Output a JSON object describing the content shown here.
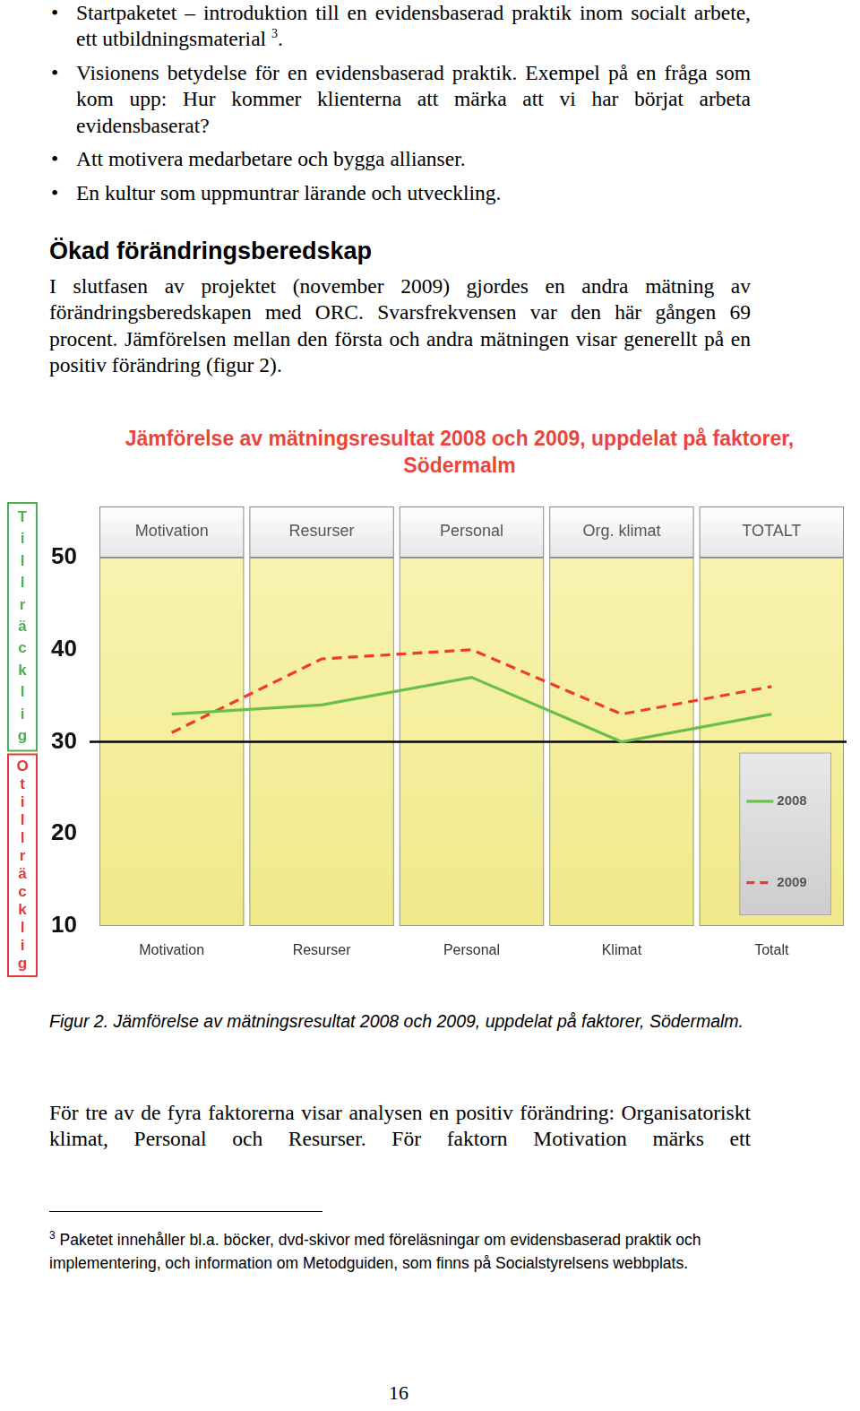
{
  "bullets": [
    {
      "text": "Startpaketet – introduktion till en evidensbaserad praktik inom socialt arbete, ett utbildningsmaterial",
      "footnote_ref": "3",
      "after": "."
    },
    {
      "text": "Visionens betydelse för en evidensbaserad praktik. Exempel på en fråga som kom upp: Hur kommer klienterna att märka att vi har börjat arbeta evidensbaserat?"
    },
    {
      "text": "Att motivera medarbetare och bygga allianser."
    },
    {
      "text": "En kultur som uppmuntrar lärande och utveckling."
    }
  ],
  "section": {
    "heading": "Ökad förändringsberedskap",
    "paragraph": "I slutfasen av projektet (november 2009) gjordes en andra mätning av förändringsberedskapen med ORC. Svarsfrekvensen var den här gången 69 procent. Jämförelsen mellan den första och andra mätningen visar generellt på en positiv förändring (figur 2)."
  },
  "chart_data": {
    "type": "line",
    "title": "Jämförelse av mätningsresultat 2008 och 2009, uppdelat på faktorer, Södermalm",
    "categories": [
      "Motivation",
      "Resurser",
      "Personal",
      "Klimat",
      "Totalt"
    ],
    "column_headers": [
      "Motivation",
      "Resurser",
      "Personal",
      "Org. klimat",
      "TOTALT"
    ],
    "series": [
      {
        "name": "2008",
        "color": "#6abf4b",
        "line_style": "solid",
        "marker": "none",
        "values": [
          33,
          34,
          37,
          30,
          33
        ]
      },
      {
        "name": "2009",
        "color": "#f03b2b",
        "line_style": "dashed",
        "marker": "none",
        "values": [
          31,
          39,
          40,
          33,
          36
        ]
      }
    ],
    "ylim": [
      10,
      50
    ],
    "yticks": [
      10,
      20,
      30,
      40,
      50
    ],
    "threshold": 30,
    "zones": [
      {
        "label": "Tillräcklig",
        "color": "#4caf50"
      },
      {
        "label": "Otillräcklig",
        "color": "#e53935"
      }
    ],
    "legend": "lower right",
    "grid": false
  },
  "caption": "Figur 2. Jämförelse av mätningsresultat 2008 och 2009, uppdelat på faktorer, Södermalm.",
  "paragraph2": "För tre av de fyra faktorerna visar analysen en positiv förändring: Organisatoriskt klimat, Personal och Resurser. För faktorn Motivation märks ett",
  "footnote": {
    "mark": "3",
    "text": "Paketet innehåller bl.a. böcker, dvd-skivor med föreläsningar om evidensbaserad praktik och implementering, och information om Metodguiden, som finns på Socialstyrelsens webbplats."
  },
  "page_number": "16"
}
